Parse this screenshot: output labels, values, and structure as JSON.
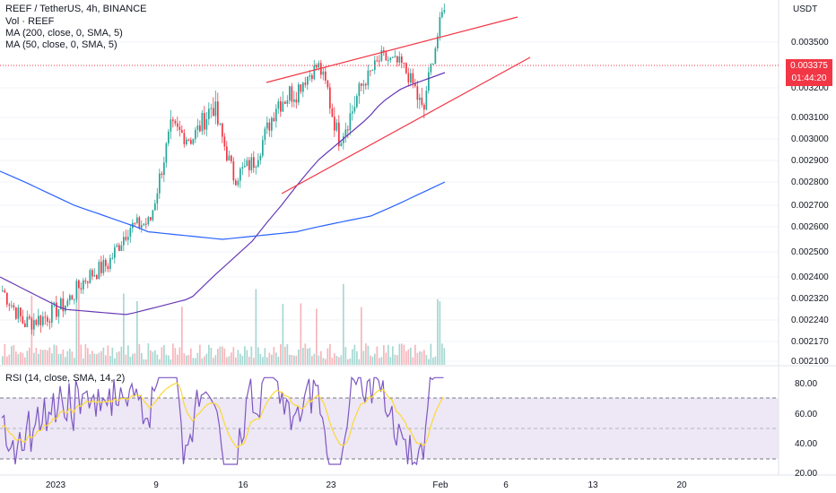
{
  "header": {
    "title": "REEF / TetherUS, 4h, BINANCE",
    "volume_label": "Vol · REEF",
    "ma200_label": "MA (200, close, 0, SMA, 5)",
    "ma50_label": "MA (50, close, 0, SMA, 5)"
  },
  "rsi_header": "RSI (14, close, SMA, 14, 2)",
  "price_axis": {
    "currency": "USDT",
    "ticks": [
      "0.003500",
      "0.003200",
      "0.003100",
      "0.003000",
      "0.002900",
      "0.002800",
      "0.002700",
      "0.002600",
      "0.002500",
      "0.002400",
      "0.002320",
      "0.002240",
      "0.002170",
      "0.002100"
    ]
  },
  "rsi_axis": {
    "ticks": [
      "80.00",
      "60.00",
      "40.00",
      "20.00"
    ]
  },
  "time_axis": {
    "ticks": [
      "2023",
      "9",
      "16",
      "23",
      "Feb",
      "6",
      "13",
      "20"
    ]
  },
  "last_price": {
    "value": "0.003375",
    "countdown": "01:44:20"
  },
  "colors": {
    "up": "#26a69a",
    "down": "#f23645",
    "ma200": "#2962ff",
    "ma50": "#673ab7",
    "trendline": "#f23645",
    "rsi": "#7e57c2",
    "rsi_ma": "#fdd835",
    "rsi_band": "#ede7f6",
    "volume_up": "#a7d8d3",
    "volume_down": "#f7b6bb"
  },
  "chart_data": {
    "type": "candlestick",
    "symbol": "REEF / TetherUS",
    "interval": "4h",
    "exchange": "BINANCE",
    "ylim": [
      0.00207,
      0.00362
    ],
    "price_scale": "log",
    "approx_close_path": [
      [
        "Dec 27",
        0.00235
      ],
      [
        "Dec 30",
        0.00223
      ],
      [
        "Jan 2",
        0.00225
      ],
      [
        "Jan 4",
        0.0023
      ],
      [
        "Jan 6",
        0.0024
      ],
      [
        "Jan 8",
        0.00245
      ],
      [
        "Jan 10",
        0.0026
      ],
      [
        "Jan 12",
        0.00262
      ],
      [
        "Jan 14",
        0.00305
      ],
      [
        "Jan 16",
        0.003
      ],
      [
        "Jan 17",
        0.00315
      ],
      [
        "Jan 19",
        0.00282
      ],
      [
        "Jan 21",
        0.0029
      ],
      [
        "Jan 22",
        0.00315
      ],
      [
        "Jan 23",
        0.0032
      ],
      [
        "Jan 25",
        0.00335
      ],
      [
        "Jan 26",
        0.003
      ],
      [
        "Jan 27",
        0.0032
      ],
      [
        "Jan 28",
        0.0034
      ],
      [
        "Jan 30",
        0.00335
      ],
      [
        "Jan 31",
        0.0031
      ],
      [
        "Feb 1",
        0.00375
      ]
    ],
    "ma200_path": [
      0.00285,
      0.0027,
      0.00258,
      0.00255,
      0.00258,
      0.00265,
      0.0028
    ],
    "ma50_path": [
      0.0024,
      0.00228,
      0.00226,
      0.00232,
      0.00255,
      0.0029,
      0.00315,
      0.0033
    ],
    "rsi": {
      "overbought": 70,
      "oversold": 30,
      "ylim": [
        20,
        85
      ]
    }
  }
}
